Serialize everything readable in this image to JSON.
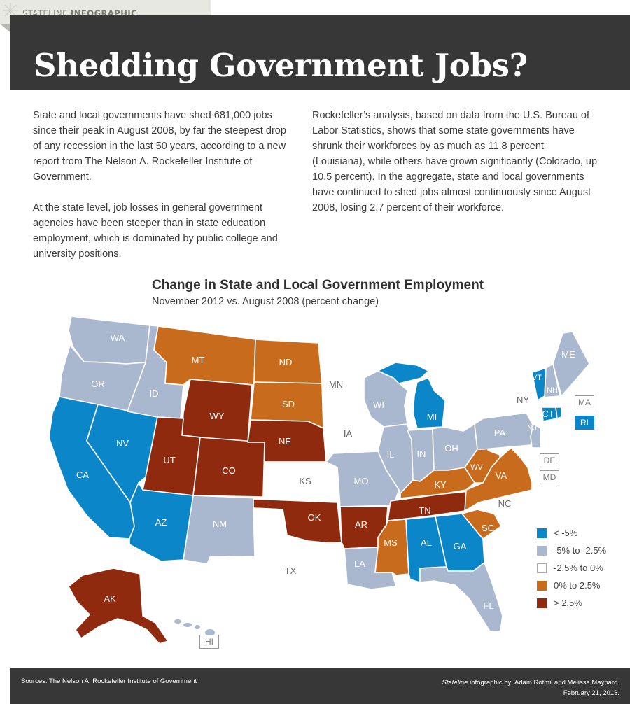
{
  "tag": {
    "prefix": "STATELINE",
    "suffix": "INFOGRAPHIC"
  },
  "title": "Shedding Government Jobs?",
  "intro": {
    "col1_p1": "State and local governments have shed 681,000 jobs since their peak in August 2008, by far the steepest drop of any recession in the last 50 years, according to a new report from The Nelson A. Rockefeller Institute of Government.",
    "col1_p2": "At the state level, job losses in general government agencies have been steeper than in state education employment, which is dominated by public college and university positions.",
    "col2_p1": "Rockefeller’s analysis, based on data from the U.S. Bureau of Labor Statistics, shows that some state governments have shrunk their workforces by as much as 11.8 percent (Louisiana), while others have grown significantly (Colorado, up 10.5 percent). In the aggregate, state and local governments have continued to shed jobs almost continuously since August 2008, losing 2.7 percent of their workforce."
  },
  "map": {
    "title": "Change in State and Local Government Employment",
    "subtitle": "November 2012 vs. August 2008 (percent change)",
    "colors": {
      "lt_-5": "#0a86c9",
      "-5_to_-2.5": "#a9b7cf",
      "-2.5_to_0": "#ffffff",
      "0_to_2.5": "#c96b1c",
      "gt_2.5": "#8f2a0f"
    },
    "states": {
      "WA": "WA",
      "OR": "OR",
      "CA": "CA",
      "NV": "NV",
      "ID": "ID",
      "MT": "MT",
      "WY": "WY",
      "UT": "UT",
      "AZ": "AZ",
      "CO": "CO",
      "NM": "NM",
      "ND": "ND",
      "SD": "SD",
      "NE": "NE",
      "KS": "KS",
      "OK": "OK",
      "TX": "TX",
      "MN": "MN",
      "IA": "IA",
      "MO": "MO",
      "AR": "AR",
      "LA": "LA",
      "WI": "WI",
      "IL": "IL",
      "MI": "MI",
      "IN": "IN",
      "OH": "OH",
      "KY": "KY",
      "TN": "TN",
      "MS": "MS",
      "AL": "AL",
      "GA": "GA",
      "FL": "FL",
      "SC": "SC",
      "NC": "NC",
      "VA": "VA",
      "WV": "WV",
      "PA": "PA",
      "NY": "NY",
      "NJ": "NJ",
      "VT": "VT",
      "NH": "NH",
      "ME": "ME",
      "CT": "CT",
      "AK": "AK",
      "HI": "HI",
      "MA": "MA",
      "RI": "RI",
      "DE": "DE",
      "MD": "MD"
    },
    "legend": [
      {
        "label": "< -5%",
        "color": "#0a86c9"
      },
      {
        "label": "-5% to -2.5%",
        "color": "#a9b7cf"
      },
      {
        "label": "-2.5% to 0%",
        "color": "#ffffff"
      },
      {
        "label": "0% to 2.5%",
        "color": "#c96b1c"
      },
      {
        "label": "> 2.5%",
        "color": "#8f2a0f"
      }
    ]
  },
  "footer": {
    "sources": "Sources: The Nelson A. Rockefeller Institute of Government",
    "credit_italic": "Stateline",
    "credit_rest": " infographic by: Adam Rotmil and Melissa Maynard.",
    "date": "February 21, 2013."
  }
}
